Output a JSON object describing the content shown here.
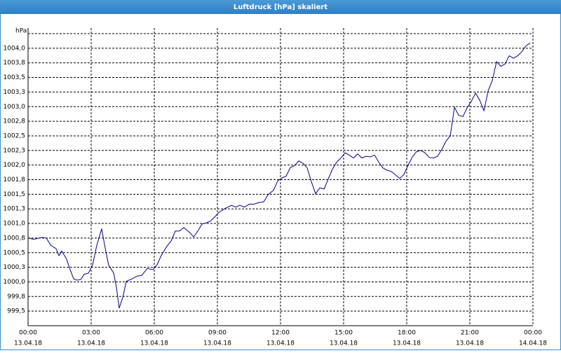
{
  "chart_data": {
    "type": "line",
    "title": "Luftdruck [hPa] skaliert",
    "ylabel": "hPa",
    "x": [
      0,
      0.27,
      0.67,
      0.87,
      1.07,
      1.33,
      1.47,
      1.6,
      1.83,
      2,
      2.17,
      2.33,
      2.5,
      2.67,
      2.87,
      3.07,
      3.27,
      3.5,
      3.67,
      3.83,
      4.07,
      4.2,
      4.33,
      4.5,
      4.67,
      4.93,
      5.2,
      5.4,
      5.67,
      5.93,
      6.13,
      6.33,
      6.6,
      6.8,
      7,
      7.2,
      7.4,
      7.67,
      7.87,
      8.07,
      8.27,
      8.47,
      8.67,
      8.87,
      9.07,
      9.33,
      9.67,
      9.87,
      10.07,
      10.27,
      10.53,
      10.73,
      11,
      11.2,
      11.4,
      11.67,
      11.87,
      12.07,
      12.27,
      12.47,
      12.67,
      12.87,
      13.07,
      13.27,
      13.47,
      13.67,
      13.87,
      14.07,
      14.27,
      14.47,
      14.67,
      14.87,
      15.07,
      15.27,
      15.47,
      15.67,
      15.87,
      16.07,
      16.27,
      16.47,
      16.67,
      16.87,
      17.07,
      17.27,
      17.47,
      17.67,
      17.87,
      18.07,
      18.27,
      18.47,
      18.67,
      18.87,
      19.07,
      19.27,
      19.47,
      19.67,
      19.87,
      20.07,
      20.27,
      20.47,
      20.67,
      20.87,
      21.07,
      21.27,
      21.47,
      21.67,
      21.87,
      22.07,
      22.27,
      22.47,
      22.67,
      22.87,
      23.07,
      23.27,
      23.47,
      23.67,
      23.87
    ],
    "series": [
      {
        "name": "Luftdruck",
        "color": "#00008b",
        "values": [
          1000.75,
          1000.73,
          1000.76,
          1000.75,
          1000.63,
          1000.57,
          1000.45,
          1000.53,
          1000.39,
          1000.21,
          1000.05,
          1000.03,
          1000.04,
          1000.13,
          1000.15,
          1000.29,
          1000.63,
          1000.91,
          1000.57,
          1000.29,
          1000.15,
          999.91,
          999.55,
          999.73,
          1000.01,
          1000.05,
          1000.1,
          1000.11,
          1000.23,
          1000.21,
          1000.29,
          1000.45,
          1000.61,
          1000.7,
          1000.87,
          1000.87,
          1000.93,
          1000.85,
          1000.77,
          1000.87,
          1000.99,
          1001.01,
          1001.04,
          1001.11,
          1001.19,
          1001.25,
          1001.31,
          1001.28,
          1001.31,
          1001.28,
          1001.33,
          1001.33,
          1001.36,
          1001.37,
          1001.49,
          1001.57,
          1001.73,
          1001.78,
          1001.81,
          1001.96,
          1001.99,
          1002.07,
          1002.03,
          1001.95,
          1001.71,
          1001.51,
          1001.61,
          1001.59,
          1001.76,
          1001.93,
          1002.05,
          1002.12,
          1002.21,
          1002.17,
          1002.12,
          1002.19,
          1002.12,
          1002.15,
          1002.14,
          1002.17,
          1002.05,
          1001.95,
          1001.91,
          1001.89,
          1001.83,
          1001.77,
          1001.84,
          1002.0,
          1002.14,
          1002.23,
          1002.25,
          1002.21,
          1002.13,
          1002.12,
          1002.15,
          1002.27,
          1002.41,
          1002.5,
          1002.99,
          1002.85,
          1002.83,
          1002.98,
          1003.09,
          1003.23,
          1003.11,
          1002.93,
          1003.27,
          1003.45,
          1003.77,
          1003.69,
          1003.73,
          1003.87,
          1003.83,
          1003.87,
          1003.94,
          1004.04,
          1004.09
        ]
      }
    ],
    "xlim": [
      0,
      24
    ],
    "xticks": [
      {
        "value": 0,
        "label": "00:00"
      },
      {
        "value": 3,
        "label": "03:00"
      },
      {
        "value": 6,
        "label": "06:00"
      },
      {
        "value": 9,
        "label": "09:00"
      },
      {
        "value": 12,
        "label": "12:00"
      },
      {
        "value": 15,
        "label": "15:00"
      },
      {
        "value": 18,
        "label": "18:00"
      },
      {
        "value": 21,
        "label": "21:00"
      },
      {
        "value": 24,
        "label": "00:00"
      }
    ],
    "xtick_dates": [
      "13.04.18",
      "13.04.18",
      "13.04.18",
      "13.04.18",
      "13.04.18",
      "13.04.18",
      "13.04.18",
      "13.04.18",
      "14.04.18"
    ],
    "ylim": [
      999.25,
      1004.25
    ],
    "yticks": [
      {
        "value": 999.5,
        "label": "999,5"
      },
      {
        "value": 999.75,
        "label": "999,8"
      },
      {
        "value": 1000,
        "label": "1000,0"
      },
      {
        "value": 1000.25,
        "label": "1000,3"
      },
      {
        "value": 1000.5,
        "label": "1000,5"
      },
      {
        "value": 1000.75,
        "label": "1000,8"
      },
      {
        "value": 1001,
        "label": "1001,0"
      },
      {
        "value": 1001.25,
        "label": "1001,3"
      },
      {
        "value": 1001.5,
        "label": "1001,5"
      },
      {
        "value": 1001.75,
        "label": "1001,8"
      },
      {
        "value": 1002,
        "label": "1002,0"
      },
      {
        "value": 1002.25,
        "label": "1002,3"
      },
      {
        "value": 1002.5,
        "label": "1002,5"
      },
      {
        "value": 1002.75,
        "label": "1002,8"
      },
      {
        "value": 1003,
        "label": "1003,0"
      },
      {
        "value": 1003.25,
        "label": "1003,3"
      },
      {
        "value": 1003.5,
        "label": "1003,5"
      },
      {
        "value": 1003.75,
        "label": "1003,8"
      },
      {
        "value": 1004,
        "label": "1004,0"
      },
      {
        "value": 1004.25,
        "label": ""
      }
    ],
    "grid": true
  }
}
